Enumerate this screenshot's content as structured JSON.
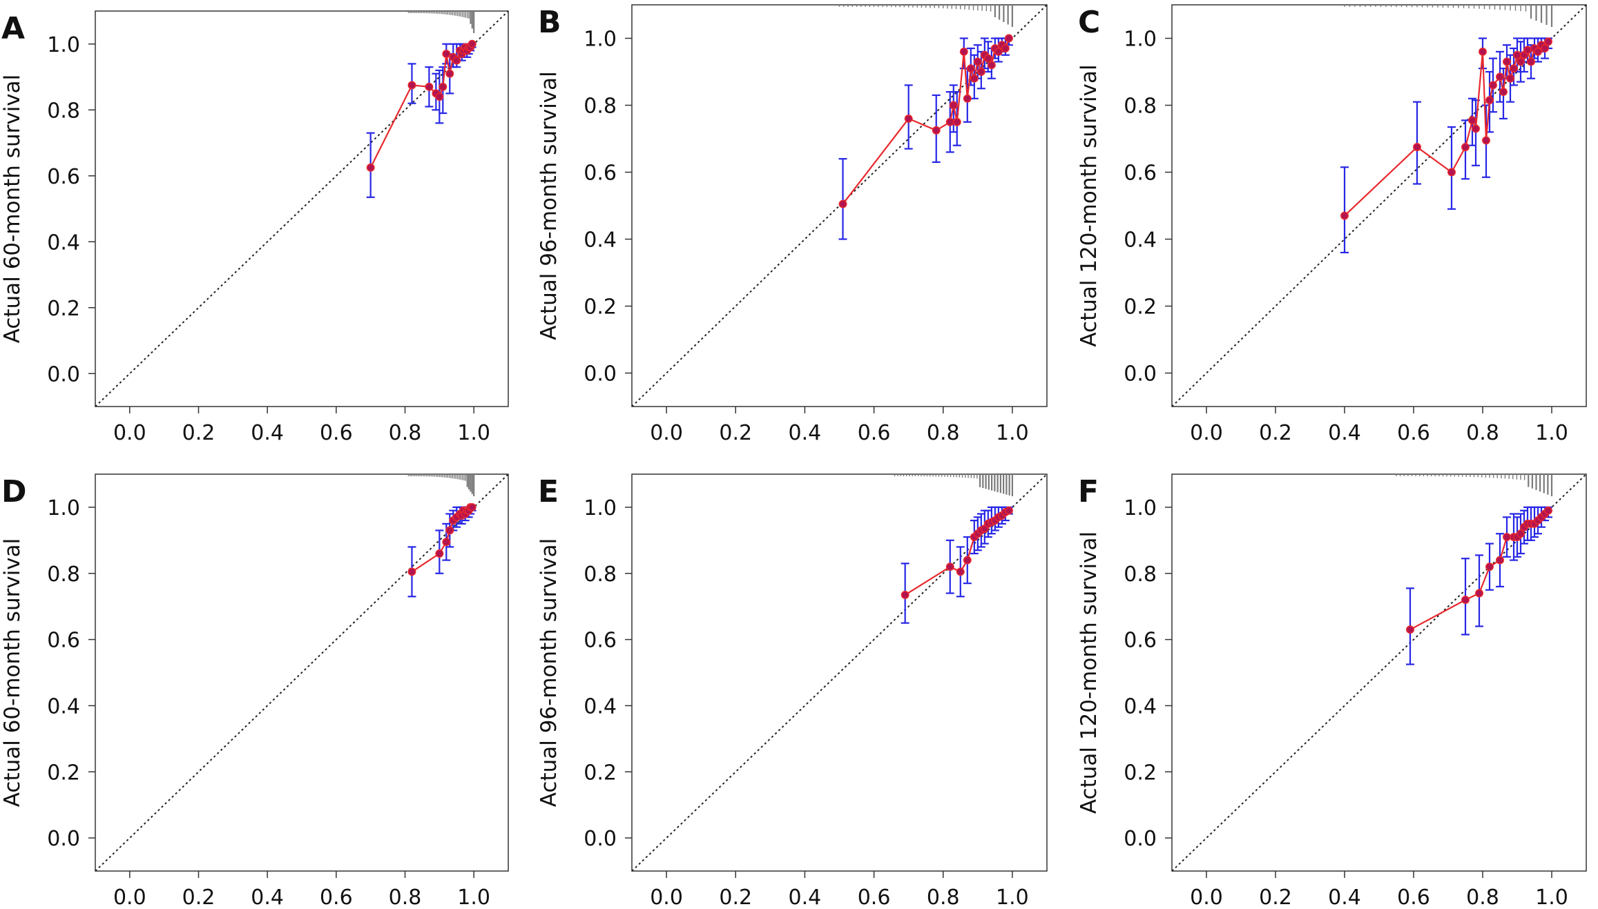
{
  "colors": {
    "line": "#e8282d",
    "point": "#b3144f",
    "errorbar": "#2626e6",
    "reference": "#222222",
    "rug": "#7a7a7a",
    "frame": "#333333"
  },
  "chart_data": [
    {
      "panel_label": "A",
      "type": "line",
      "ylabel": "Actual 60-month survival",
      "xlabel": "",
      "xlim": [
        -0.1,
        1.1
      ],
      "ylim": [
        -0.1,
        1.1
      ],
      "xticks": [
        "0.0",
        "0.2",
        "0.4",
        "0.6",
        "0.8",
        "1.0"
      ],
      "yticks": [
        "0.0",
        "0.2",
        "0.4",
        "0.6",
        "0.8",
        "1.0"
      ],
      "reference_line": "y = x (dotted)",
      "rug": {
        "from": 0.81,
        "to": 1.0,
        "dense_from": 0.99
      },
      "series": [
        {
          "x": [
            0.7,
            0.82,
            0.87,
            0.89,
            0.9,
            0.91,
            0.92,
            0.93,
            0.94,
            0.95,
            0.96,
            0.965,
            0.97,
            0.975,
            0.98,
            0.985,
            0.99,
            0.995
          ],
          "y": [
            0.625,
            0.875,
            0.87,
            0.85,
            0.84,
            0.87,
            0.97,
            0.91,
            0.96,
            0.95,
            0.98,
            0.97,
            0.98,
            0.99,
            0.98,
            0.99,
            0.99,
            1.0
          ],
          "lo": [
            0.535,
            0.82,
            0.81,
            0.8,
            0.76,
            0.79,
            0.94,
            0.85,
            0.93,
            0.93,
            0.96,
            0.95,
            0.96,
            0.97,
            0.96,
            0.97,
            0.98,
            0.99
          ],
          "hi": [
            0.73,
            0.94,
            0.93,
            0.91,
            0.92,
            0.93,
            1.0,
            0.97,
            1.0,
            1.0,
            1.0,
            1.0,
            1.0,
            1.0,
            1.0,
            1.0,
            1.0,
            1.0
          ]
        }
      ]
    },
    {
      "panel_label": "B",
      "type": "line",
      "ylabel": "Actual 96-month survival",
      "xlabel": "",
      "xlim": [
        -0.1,
        1.1
      ],
      "ylim": [
        -0.1,
        1.1
      ],
      "xticks": [
        "0.0",
        "0.2",
        "0.4",
        "0.6",
        "0.8",
        "1.0"
      ],
      "yticks": [
        "0.0",
        "0.2",
        "0.4",
        "0.6",
        "0.8",
        "1.0"
      ],
      "reference_line": "y = x (dotted)",
      "rug": {
        "from": 0.5,
        "to": 1.0,
        "dense_from": 0.95
      },
      "series": [
        {
          "x": [
            0.51,
            0.7,
            0.78,
            0.82,
            0.83,
            0.84,
            0.86,
            0.87,
            0.88,
            0.89,
            0.9,
            0.91,
            0.92,
            0.93,
            0.94,
            0.95,
            0.96,
            0.97,
            0.98,
            0.99
          ],
          "y": [
            0.505,
            0.76,
            0.725,
            0.75,
            0.8,
            0.75,
            0.96,
            0.82,
            0.91,
            0.88,
            0.93,
            0.9,
            0.95,
            0.94,
            0.92,
            0.97,
            0.96,
            0.98,
            0.97,
            1.0
          ],
          "lo": [
            0.4,
            0.67,
            0.63,
            0.66,
            0.72,
            0.68,
            0.91,
            0.75,
            0.86,
            0.82,
            0.88,
            0.85,
            0.91,
            0.9,
            0.88,
            0.94,
            0.93,
            0.96,
            0.95,
            0.98
          ],
          "hi": [
            0.64,
            0.86,
            0.83,
            0.84,
            0.86,
            0.84,
            1.0,
            0.91,
            0.97,
            0.95,
            0.98,
            0.96,
            1.0,
            0.99,
            0.97,
            1.0,
            1.0,
            1.0,
            1.0,
            1.0
          ]
        }
      ]
    },
    {
      "panel_label": "C",
      "type": "line",
      "ylabel": "Actual 120-month survival",
      "xlabel": "",
      "xlim": [
        -0.1,
        1.1
      ],
      "ylim": [
        -0.1,
        1.1
      ],
      "xticks": [
        "0.0",
        "0.2",
        "0.4",
        "0.6",
        "0.8",
        "1.0"
      ],
      "yticks": [
        "0.0",
        "0.2",
        "0.4",
        "0.6",
        "0.8",
        "1.0"
      ],
      "reference_line": "y = x (dotted)",
      "rug": {
        "from": 0.4,
        "to": 1.0,
        "dense_from": 0.93
      },
      "series": [
        {
          "x": [
            0.4,
            0.61,
            0.71,
            0.75,
            0.77,
            0.78,
            0.8,
            0.81,
            0.82,
            0.83,
            0.85,
            0.86,
            0.87,
            0.88,
            0.89,
            0.9,
            0.91,
            0.92,
            0.93,
            0.94,
            0.95,
            0.96,
            0.97,
            0.98,
            0.99
          ],
          "y": [
            0.47,
            0.675,
            0.6,
            0.675,
            0.755,
            0.73,
            0.96,
            0.695,
            0.815,
            0.86,
            0.885,
            0.84,
            0.93,
            0.88,
            0.91,
            0.95,
            0.93,
            0.95,
            0.965,
            0.93,
            0.97,
            0.96,
            0.98,
            0.97,
            0.99
          ],
          "lo": [
            0.36,
            0.565,
            0.49,
            0.58,
            0.68,
            0.62,
            0.91,
            0.585,
            0.72,
            0.78,
            0.81,
            0.76,
            0.88,
            0.81,
            0.86,
            0.9,
            0.87,
            0.9,
            0.93,
            0.88,
            0.94,
            0.93,
            0.96,
            0.94,
            0.97
          ],
          "hi": [
            0.615,
            0.81,
            0.735,
            0.755,
            0.82,
            0.815,
            1.0,
            0.8,
            0.9,
            0.94,
            0.96,
            0.91,
            0.98,
            0.95,
            0.97,
            1.0,
            0.99,
            1.0,
            1.0,
            0.98,
            1.0,
            1.0,
            1.0,
            1.0,
            1.0
          ]
        }
      ]
    },
    {
      "panel_label": "D",
      "type": "line",
      "ylabel": "Actual 60-month survival",
      "xlabel": "",
      "xlim": [
        -0.1,
        1.1
      ],
      "ylim": [
        -0.1,
        1.1
      ],
      "xticks": [
        "0.0",
        "0.2",
        "0.4",
        "0.6",
        "0.8",
        "1.0"
      ],
      "yticks": [
        "0.0",
        "0.2",
        "0.4",
        "0.6",
        "0.8",
        "1.0"
      ],
      "reference_line": "y = x (dotted)",
      "rug": {
        "from": 0.81,
        "to": 1.0,
        "dense_from": 0.98
      },
      "series": [
        {
          "x": [
            0.82,
            0.9,
            0.92,
            0.93,
            0.94,
            0.95,
            0.96,
            0.965,
            0.97,
            0.975,
            0.98,
            0.985,
            0.99,
            0.995
          ],
          "y": [
            0.805,
            0.86,
            0.895,
            0.93,
            0.96,
            0.97,
            0.98,
            0.975,
            0.99,
            0.98,
            0.99,
            0.99,
            1.0,
            1.0
          ],
          "lo": [
            0.73,
            0.8,
            0.84,
            0.88,
            0.93,
            0.94,
            0.95,
            0.95,
            0.97,
            0.96,
            0.97,
            0.97,
            0.98,
            0.99
          ],
          "hi": [
            0.88,
            0.93,
            0.95,
            0.98,
            0.99,
            1.0,
            1.0,
            1.0,
            1.0,
            1.0,
            1.0,
            1.0,
            1.0,
            1.0
          ]
        }
      ]
    },
    {
      "panel_label": "E",
      "type": "line",
      "ylabel": "Actual 96-month survival",
      "xlabel": "",
      "xlim": [
        -0.1,
        1.1
      ],
      "ylim": [
        -0.1,
        1.1
      ],
      "xticks": [
        "0.0",
        "0.2",
        "0.4",
        "0.6",
        "0.8",
        "1.0"
      ],
      "yticks": [
        "0.0",
        "0.2",
        "0.4",
        "0.6",
        "0.8",
        "1.0"
      ],
      "reference_line": "y = x (dotted)",
      "rug": {
        "from": 0.66,
        "to": 1.0,
        "dense_from": 0.9
      },
      "series": [
        {
          "x": [
            0.69,
            0.82,
            0.85,
            0.87,
            0.89,
            0.9,
            0.91,
            0.92,
            0.93,
            0.94,
            0.95,
            0.96,
            0.97,
            0.98,
            0.99
          ],
          "y": [
            0.735,
            0.82,
            0.805,
            0.84,
            0.91,
            0.92,
            0.93,
            0.935,
            0.95,
            0.955,
            0.96,
            0.97,
            0.975,
            0.985,
            0.99
          ],
          "lo": [
            0.65,
            0.74,
            0.73,
            0.77,
            0.86,
            0.87,
            0.88,
            0.89,
            0.91,
            0.92,
            0.93,
            0.94,
            0.95,
            0.96,
            0.98
          ],
          "hi": [
            0.83,
            0.9,
            0.88,
            0.91,
            0.96,
            0.97,
            0.98,
            0.99,
            0.99,
            1.0,
            1.0,
            1.0,
            1.0,
            1.0,
            1.0
          ]
        }
      ]
    },
    {
      "panel_label": "F",
      "type": "line",
      "ylabel": "Actual 120-month survival",
      "xlabel": "",
      "xlim": [
        -0.1,
        1.1
      ],
      "ylim": [
        -0.1,
        1.1
      ],
      "xticks": [
        "0.0",
        "0.2",
        "0.4",
        "0.6",
        "0.8",
        "1.0"
      ],
      "yticks": [
        "0.0",
        "0.2",
        "0.4",
        "0.6",
        "0.8",
        "1.0"
      ],
      "reference_line": "y = x (dotted)",
      "rug": {
        "from": 0.55,
        "to": 1.0,
        "dense_from": 0.93
      },
      "series": [
        {
          "x": [
            0.59,
            0.75,
            0.79,
            0.82,
            0.85,
            0.87,
            0.89,
            0.9,
            0.91,
            0.92,
            0.93,
            0.94,
            0.95,
            0.96,
            0.97,
            0.98,
            0.99
          ],
          "y": [
            0.63,
            0.72,
            0.74,
            0.82,
            0.84,
            0.91,
            0.91,
            0.91,
            0.92,
            0.94,
            0.95,
            0.95,
            0.95,
            0.96,
            0.97,
            0.98,
            0.99
          ],
          "lo": [
            0.525,
            0.615,
            0.64,
            0.75,
            0.76,
            0.85,
            0.84,
            0.85,
            0.86,
            0.89,
            0.9,
            0.9,
            0.91,
            0.92,
            0.94,
            0.96,
            0.97
          ],
          "hi": [
            0.755,
            0.845,
            0.855,
            0.89,
            0.92,
            0.97,
            0.98,
            0.97,
            0.98,
            0.99,
            1.0,
            1.0,
            1.0,
            1.0,
            1.0,
            1.0,
            1.0
          ]
        }
      ]
    }
  ]
}
